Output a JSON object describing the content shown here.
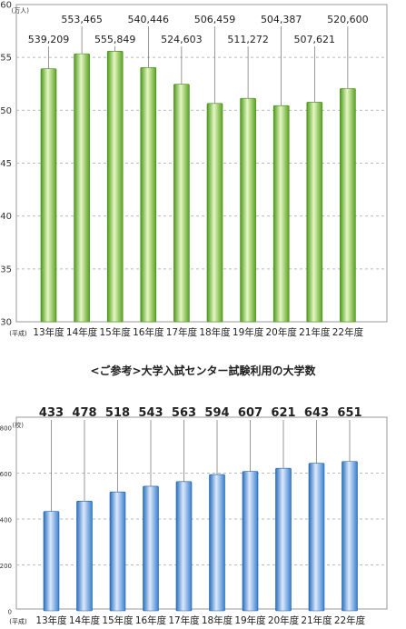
{
  "chart_data": [
    {
      "type": "bar",
      "categories": [
        "13年度",
        "14年度",
        "15年度",
        "16年度",
        "17年度",
        "18年度",
        "19年度",
        "20年度",
        "21年度",
        "22年度"
      ],
      "category_prefix": "(平成)",
      "values": [
        53.9209,
        55.3465,
        55.5849,
        54.0446,
        52.4603,
        50.6459,
        51.1272,
        50.4387,
        50.7621,
        52.06
      ],
      "data_labels": [
        "539,209",
        "553,465",
        "555,849",
        "540,446",
        "524,603",
        "506,459",
        "511,272",
        "504,387",
        "507,621",
        "520,600"
      ],
      "ylim": [
        30,
        60
      ],
      "yticks": [
        "30",
        "35",
        "40",
        "45",
        "50",
        "55",
        "60"
      ],
      "ylabel": "(万人)",
      "title": "",
      "grid": true,
      "bar_color": "#7cc63c"
    },
    {
      "type": "bar",
      "title": "<ご参考>大学入試センター試験利用の大学数",
      "categories": [
        "13年度",
        "14年度",
        "15年度",
        "16年度",
        "17年度",
        "18年度",
        "19年度",
        "20年度",
        "21年度",
        "22年度"
      ],
      "category_prefix": "(平成)",
      "values": [
        433,
        478,
        518,
        543,
        563,
        594,
        607,
        621,
        643,
        651
      ],
      "data_labels": [
        "433",
        "478",
        "518",
        "543",
        "563",
        "594",
        "607",
        "621",
        "643",
        "651"
      ],
      "ylim": [
        0,
        800
      ],
      "yticks": [
        "0",
        "200",
        "400",
        "600",
        "800"
      ],
      "ylabel": "(校)",
      "grid": true,
      "bar_color": "#4f8fd6"
    }
  ]
}
